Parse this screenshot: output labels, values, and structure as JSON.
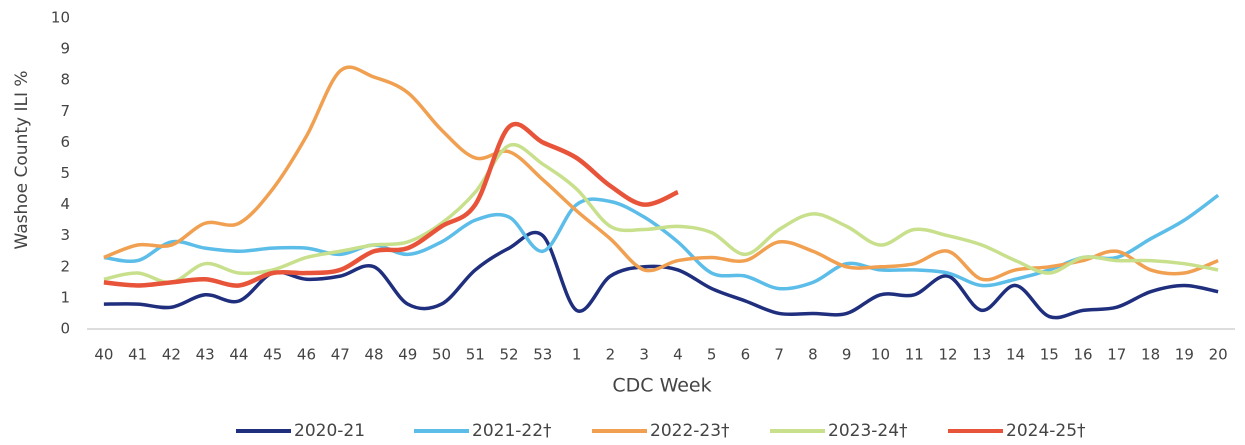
{
  "chart_data": {
    "type": "line",
    "x_label": "CDC Week",
    "y_label": "Washoe County ILI %",
    "categories": [
      "40",
      "41",
      "42",
      "43",
      "44",
      "45",
      "46",
      "47",
      "48",
      "49",
      "50",
      "51",
      "52",
      "53",
      "1",
      "2",
      "3",
      "4",
      "5",
      "6",
      "7",
      "8",
      "9",
      "10",
      "11",
      "12",
      "13",
      "14",
      "15",
      "16",
      "17",
      "18",
      "19",
      "20"
    ],
    "ylim": [
      0,
      10
    ],
    "yticks": [
      0,
      1,
      2,
      3,
      4,
      5,
      6,
      7,
      8,
      9,
      10
    ],
    "series": [
      {
        "name": "2020-21",
        "color": "#1f2f7e",
        "values": [
          0.8,
          0.8,
          0.7,
          1.1,
          0.9,
          1.8,
          1.6,
          1.7,
          2.0,
          0.8,
          0.8,
          1.9,
          2.6,
          3.0,
          0.6,
          1.7,
          2.0,
          1.9,
          1.3,
          0.9,
          0.5,
          0.5,
          0.5,
          1.1,
          1.1,
          1.7,
          0.6,
          1.4,
          0.4,
          0.6,
          0.7,
          1.2,
          1.4,
          1.2
        ]
      },
      {
        "name": "2021-22†",
        "color": "#5bbde8",
        "values": [
          2.3,
          2.2,
          2.8,
          2.6,
          2.5,
          2.6,
          2.6,
          2.4,
          2.7,
          2.4,
          2.8,
          3.5,
          3.6,
          2.5,
          4.0,
          4.1,
          3.6,
          2.8,
          1.8,
          1.7,
          1.3,
          1.5,
          2.1,
          1.9,
          1.9,
          1.8,
          1.4,
          1.6,
          1.9,
          2.3,
          2.3,
          2.9,
          3.5,
          4.3
        ]
      },
      {
        "name": "2022-23†",
        "color": "#f0a050",
        "values": [
          2.3,
          2.7,
          2.7,
          3.4,
          3.4,
          4.5,
          6.2,
          8.3,
          8.1,
          7.6,
          6.4,
          5.5,
          5.7,
          4.8,
          3.8,
          2.9,
          1.9,
          2.2,
          2.3,
          2.2,
          2.8,
          2.5,
          2.0,
          2.0,
          2.1,
          2.5,
          1.6,
          1.9,
          2.0,
          2.2,
          2.5,
          1.9,
          1.8,
          2.2
        ]
      },
      {
        "name": "2023-24†",
        "color": "#c8e08c",
        "values": [
          1.6,
          1.8,
          1.5,
          2.1,
          1.8,
          1.9,
          2.3,
          2.5,
          2.7,
          2.8,
          3.4,
          4.4,
          5.9,
          5.3,
          4.5,
          3.3,
          3.2,
          3.3,
          3.1,
          2.4,
          3.2,
          3.7,
          3.3,
          2.7,
          3.2,
          3.0,
          2.7,
          2.2,
          1.8,
          2.3,
          2.2,
          2.2,
          2.1,
          1.9
        ]
      },
      {
        "name": "2024-25†",
        "color": "#e8543a",
        "values": [
          1.5,
          1.4,
          1.5,
          1.6,
          1.4,
          1.8,
          1.8,
          1.9,
          2.5,
          2.6,
          3.3,
          4.0,
          6.5,
          6.0,
          5.5,
          4.6,
          4.0,
          4.4,
          null,
          null,
          null,
          null,
          null,
          null,
          null,
          null,
          null,
          null,
          null,
          null,
          null,
          null,
          null,
          null
        ]
      }
    ]
  }
}
